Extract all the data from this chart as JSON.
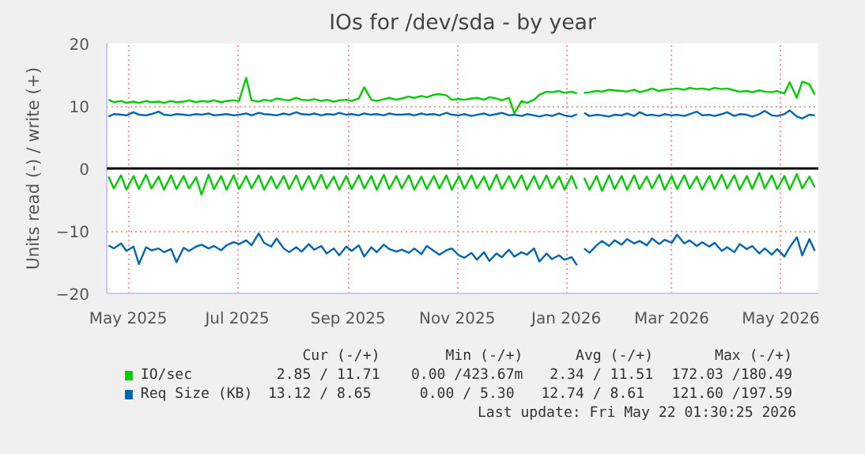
{
  "chart_data": {
    "type": "line",
    "title": "IOs for /dev/sda - by year",
    "ylabel": "Units read (-) / write (+)",
    "xlim": [
      "2025-04-19",
      "2026-05-22"
    ],
    "xticks": [
      {
        "value": "2025-05-01",
        "label": "May 2025"
      },
      {
        "value": "2025-07-01",
        "label": "Jul 2025"
      },
      {
        "value": "2025-09-01",
        "label": "Sep 2025"
      },
      {
        "value": "2025-11-01",
        "label": "Nov 2025"
      },
      {
        "value": "2026-01-01",
        "label": "Jan 2026"
      },
      {
        "value": "2026-03-01",
        "label": "Mar 2026"
      },
      {
        "value": "2026-05-01",
        "label": "May 2026"
      }
    ],
    "ylim": [
      -20,
      20
    ],
    "yticks": [
      -20,
      -10,
      0,
      10,
      20
    ],
    "grid": true,
    "legend": "bottom",
    "ref_lines": [
      {
        "axis": "y",
        "value": 0,
        "color": "#000000"
      }
    ],
    "x": [
      "2025-04-20",
      "2025-04-23",
      "2025-04-27",
      "2025-04-30",
      "2025-05-04",
      "2025-05-07",
      "2025-05-11",
      "2025-05-14",
      "2025-05-18",
      "2025-05-21",
      "2025-05-25",
      "2025-05-28",
      "2025-06-01",
      "2025-06-04",
      "2025-06-08",
      "2025-06-11",
      "2025-06-15",
      "2025-06-18",
      "2025-06-22",
      "2025-06-25",
      "2025-06-29",
      "2025-07-02",
      "2025-07-06",
      "2025-07-09",
      "2025-07-13",
      "2025-07-16",
      "2025-07-20",
      "2025-07-23",
      "2025-07-27",
      "2025-07-30",
      "2025-08-03",
      "2025-08-06",
      "2025-08-10",
      "2025-08-13",
      "2025-08-17",
      "2025-08-20",
      "2025-08-24",
      "2025-08-27",
      "2025-08-31",
      "2025-09-03",
      "2025-09-07",
      "2025-09-10",
      "2025-09-14",
      "2025-09-17",
      "2025-09-21",
      "2025-09-24",
      "2025-09-28",
      "2025-10-01",
      "2025-10-05",
      "2025-10-08",
      "2025-10-12",
      "2025-10-15",
      "2025-10-19",
      "2025-10-22",
      "2025-10-26",
      "2025-10-29",
      "2025-11-02",
      "2025-11-05",
      "2025-11-09",
      "2025-11-12",
      "2025-11-16",
      "2025-11-19",
      "2025-11-23",
      "2025-11-26",
      "2025-11-30",
      "2025-12-03",
      "2025-12-07",
      "2025-12-10",
      "2025-12-14",
      "2025-12-17",
      "2025-12-21",
      "2025-12-24",
      "2025-12-28",
      "2025-12-31",
      "2026-01-04",
      "2026-01-07",
      "2026-01-09",
      "2026-01-11",
      "2026-01-14",
      "2026-01-18",
      "2026-01-21",
      "2026-01-25",
      "2026-01-28",
      "2026-02-01",
      "2026-02-04",
      "2026-02-08",
      "2026-02-11",
      "2026-02-15",
      "2026-02-18",
      "2026-02-22",
      "2026-02-25",
      "2026-03-01",
      "2026-03-04",
      "2026-03-08",
      "2026-03-11",
      "2026-03-15",
      "2026-03-18",
      "2026-03-22",
      "2026-03-25",
      "2026-03-29",
      "2026-04-01",
      "2026-04-05",
      "2026-04-08",
      "2026-04-12",
      "2026-04-15",
      "2026-04-19",
      "2026-04-22",
      "2026-04-26",
      "2026-04-29",
      "2026-05-03",
      "2026-05-06",
      "2026-05-10",
      "2026-05-13",
      "2026-05-17",
      "2026-05-20"
    ],
    "series": [
      {
        "name": "IO/sec",
        "color": "#00cc00",
        "values": [
          11.0,
          10.6,
          10.8,
          10.5,
          10.7,
          10.5,
          10.8,
          10.6,
          10.7,
          10.5,
          10.8,
          10.6,
          10.7,
          10.9,
          10.6,
          10.8,
          10.7,
          10.9,
          10.6,
          10.8,
          10.9,
          10.8,
          14.5,
          10.9,
          10.7,
          11.0,
          10.8,
          11.2,
          11.0,
          10.9,
          11.3,
          11.0,
          10.9,
          11.1,
          10.8,
          11.0,
          10.7,
          10.9,
          11.0,
          10.8,
          11.2,
          13.0,
          11.0,
          10.8,
          11.1,
          11.3,
          11.0,
          11.2,
          11.5,
          11.3,
          11.6,
          11.4,
          11.8,
          11.9,
          11.7,
          11.0,
          11.1,
          11.0,
          11.2,
          11.3,
          11.0,
          11.4,
          11.2,
          10.9,
          11.3,
          8.8,
          10.8,
          10.5,
          11.0,
          11.8,
          12.3,
          12.2,
          12.4,
          12.1,
          12.3,
          12.0,
          null,
          12.1,
          12.2,
          12.4,
          12.3,
          12.6,
          12.5,
          12.4,
          12.3,
          12.6,
          12.2,
          12.5,
          12.8,
          12.4,
          12.6,
          12.7,
          12.8,
          12.6,
          12.9,
          12.7,
          12.8,
          12.6,
          12.9,
          12.7,
          12.8,
          12.5,
          12.3,
          12.4,
          12.2,
          12.5,
          12.3,
          12.2,
          12.4,
          12.0,
          13.8,
          11.3,
          13.9,
          13.5,
          11.8
        ]
      },
      {
        "color": "#00cc00",
        "values": [
          -1.3,
          -3.2,
          -1.1,
          -3.4,
          -1.2,
          -3.3,
          -1.0,
          -3.2,
          -1.3,
          -3.4,
          -1.1,
          -3.3,
          -1.2,
          -3.2,
          -1.4,
          -4.2,
          -1.0,
          -3.3,
          -1.2,
          -3.4,
          -1.1,
          -3.3,
          -1.2,
          -3.2,
          -1.1,
          -3.4,
          -1.3,
          -3.2,
          -1.2,
          -3.3,
          -1.1,
          -3.4,
          -1.2,
          -3.3,
          -1.0,
          -3.2,
          -1.3,
          -3.4,
          -1.2,
          -3.3,
          -1.1,
          -3.2,
          -1.2,
          -3.4,
          -1.0,
          -3.3,
          -1.2,
          -3.2,
          -1.1,
          -3.4,
          -1.3,
          -3.3,
          -1.2,
          -3.2,
          -1.1,
          -3.4,
          -1.2,
          -3.3,
          -1.1,
          -3.2,
          -1.3,
          -3.4,
          -1.0,
          -3.3,
          -1.2,
          -3.2,
          -1.1,
          -3.4,
          -1.2,
          -3.3,
          -1.1,
          -3.2,
          -1.3,
          -3.4,
          -1.2,
          -3.3,
          null,
          -1.5,
          -3.4,
          -1.2,
          -3.6,
          -1.1,
          -3.3,
          -1.2,
          -3.4,
          -1.1,
          -3.3,
          -1.3,
          -3.2,
          -1.0,
          -3.4,
          -1.2,
          -3.3,
          -1.1,
          -3.2,
          -1.3,
          -3.4,
          -1.2,
          -3.3,
          -1.0,
          -3.2,
          -1.1,
          -3.4,
          -1.2,
          -3.3,
          -0.7,
          -3.2,
          -1.1,
          -3.3,
          -1.2,
          -3.4,
          -0.9,
          -3.2,
          -1.3,
          -3.0
        ]
      },
      {
        "name": "Req Size (KB)",
        "color": "#0066b3",
        "values": [
          8.3,
          8.7,
          8.6,
          8.5,
          9.0,
          8.6,
          8.5,
          8.7,
          9.1,
          8.6,
          8.5,
          8.7,
          8.6,
          8.5,
          8.7,
          8.6,
          8.8,
          8.5,
          8.6,
          8.7,
          8.5,
          8.6,
          8.8,
          8.5,
          8.9,
          8.7,
          8.6,
          8.5,
          8.8,
          8.6,
          9.0,
          8.7,
          8.6,
          8.8,
          8.5,
          8.7,
          8.6,
          8.9,
          8.6,
          8.7,
          8.5,
          8.8,
          8.6,
          8.7,
          8.5,
          8.8,
          8.6,
          8.6,
          8.7,
          8.5,
          8.8,
          8.6,
          8.7,
          8.5,
          8.9,
          8.6,
          8.5,
          8.7,
          8.4,
          8.6,
          8.8,
          8.5,
          8.7,
          8.9,
          8.5,
          8.6,
          8.4,
          8.7,
          8.5,
          8.3,
          8.6,
          8.4,
          8.8,
          8.5,
          8.3,
          8.7,
          null,
          8.9,
          8.4,
          8.6,
          8.5,
          8.3,
          8.6,
          8.5,
          8.8,
          8.4,
          9.0,
          8.5,
          8.6,
          8.4,
          8.7,
          8.5,
          8.6,
          8.4,
          8.7,
          9.1,
          8.5,
          8.6,
          8.4,
          8.7,
          9.0,
          8.4,
          8.7,
          8.6,
          8.3,
          8.7,
          9.2,
          8.5,
          8.4,
          8.7,
          9.3,
          8.3,
          8.0,
          8.6,
          8.5
        ]
      },
      {
        "color": "#0066b3",
        "values": [
          -12.3,
          -12.8,
          -12.0,
          -13.2,
          -12.5,
          -15.3,
          -12.6,
          -13.1,
          -12.8,
          -13.4,
          -12.9,
          -15.0,
          -12.7,
          -13.2,
          -12.5,
          -12.2,
          -12.8,
          -12.4,
          -13.1,
          -12.3,
          -11.8,
          -12.1,
          -11.5,
          -12.3,
          -10.4,
          -11.9,
          -12.5,
          -11.2,
          -12.8,
          -13.4,
          -12.6,
          -13.3,
          -12.1,
          -13.0,
          -12.4,
          -13.6,
          -12.8,
          -13.9,
          -12.5,
          -13.2,
          -12.3,
          -14.1,
          -12.6,
          -13.4,
          -12.2,
          -12.9,
          -13.3,
          -13.0,
          -13.5,
          -12.8,
          -13.7,
          -12.4,
          -13.2,
          -13.8,
          -13.1,
          -12.8,
          -13.9,
          -14.3,
          -13.5,
          -14.6,
          -13.4,
          -14.8,
          -13.6,
          -14.2,
          -13.0,
          -14.1,
          -13.4,
          -13.8,
          -12.8,
          -14.9,
          -13.6,
          -14.5,
          -13.9,
          -14.6,
          -14.2,
          -15.5,
          null,
          -12.8,
          -13.5,
          -12.3,
          -11.6,
          -12.4,
          -11.5,
          -12.2,
          -11.3,
          -12.0,
          -11.6,
          -12.3,
          -11.2,
          -12.1,
          -11.4,
          -11.9,
          -10.6,
          -12.0,
          -11.5,
          -12.4,
          -11.8,
          -12.5,
          -11.9,
          -13.2,
          -12.6,
          -13.4,
          -12.1,
          -12.9,
          -12.4,
          -13.6,
          -12.8,
          -13.8,
          -12.9,
          -14.1,
          -12.6,
          -11.0,
          -13.9,
          -11.3,
          -13.2
        ]
      }
    ],
    "annotations": [
      "Cur (-/+)",
      "Min (-/+)",
      "Avg (-/+)",
      "Max (-/+)",
      "2.85 / 11.71",
      "0.00 /423.67m",
      "2.34 / 11.51",
      "172.03 /180.49",
      "13.12 /  8.65",
      "0.00 /  5.30",
      "12.74 /  8.61",
      "121.60 /197.59",
      "Last update: Fri May 22 01:30:25 2026"
    ]
  }
}
